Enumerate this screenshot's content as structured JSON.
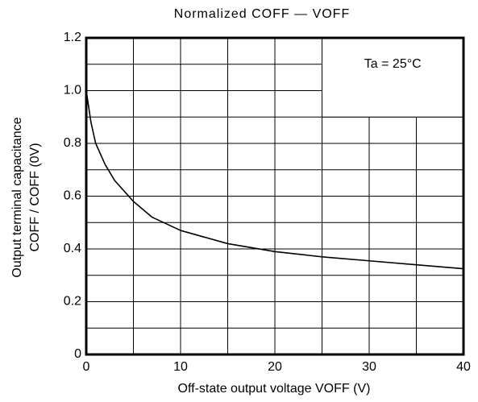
{
  "chart_data": {
    "type": "line",
    "title": "Normalized COFF — VOFF",
    "x_label": "Off-state output voltage VOFF    (V)",
    "y_label": [
      "Output terminal capacitance",
      "COFF / COFF (0V)"
    ],
    "annotation": "Ta = 25°C",
    "x": [
      0,
      0.5,
      1,
      2,
      3,
      5,
      7,
      10,
      15,
      20,
      25,
      30,
      35,
      40
    ],
    "series": [
      {
        "name": "COFF",
        "color": "#000000",
        "values": [
          1.0,
          0.88,
          0.8,
          0.72,
          0.66,
          0.58,
          0.52,
          0.47,
          0.42,
          0.39,
          0.37,
          0.355,
          0.34,
          0.325
        ]
      }
    ],
    "xlim": [
      0,
      40
    ],
    "ylim": [
      0,
      1.2
    ],
    "xticks": [
      0,
      10,
      20,
      30,
      40
    ],
    "yticks": [
      0,
      0.2,
      0.4,
      0.6,
      0.8,
      {
        "value": 1,
        "label": "1.0"
      },
      1.2
    ],
    "xgrid": [
      5,
      15,
      25,
      35
    ],
    "ygrid": [
      0.1,
      0.3,
      0.5,
      0.7,
      0.9,
      1.1
    ],
    "grid": true
  }
}
